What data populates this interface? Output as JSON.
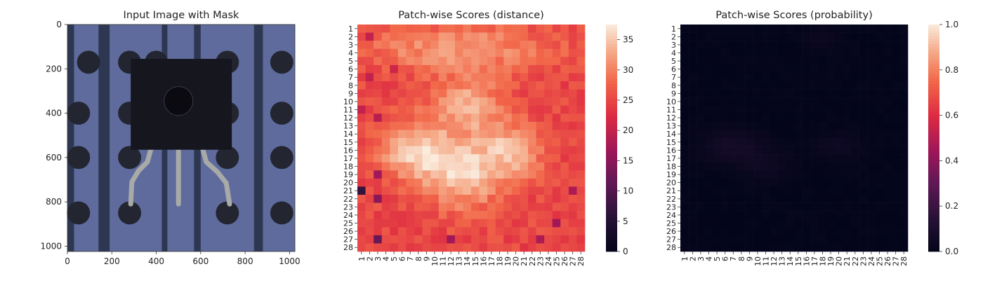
{
  "chart_data": [
    {
      "type": "image",
      "title": "Input Image with Mask",
      "xlim": [
        0,
        1024
      ],
      "ylim": [
        1024,
        0
      ],
      "xticks": [
        0,
        200,
        400,
        600,
        800,
        1000
      ],
      "yticks": [
        0,
        200,
        400,
        600,
        800,
        1000
      ],
      "background_color": "#5E6B9C",
      "stripe_color": "#2E3752",
      "hole_color": "#232631",
      "component_color": "#16161F",
      "lead_color": "#A8AAA8",
      "image_content": {
        "stripes_x": [
          [
            0,
            30
          ],
          [
            140,
            190
          ],
          [
            425,
            450
          ],
          [
            570,
            600
          ],
          [
            840,
            880
          ]
        ],
        "holes": [
          [
            95,
            170
          ],
          [
            280,
            170
          ],
          [
            400,
            170
          ],
          [
            720,
            170
          ],
          [
            965,
            170
          ],
          [
            50,
            400
          ],
          [
            280,
            400
          ],
          [
            720,
            400
          ],
          [
            965,
            400
          ],
          [
            50,
            600
          ],
          [
            280,
            600
          ],
          [
            720,
            600
          ],
          [
            965,
            600
          ],
          [
            50,
            850
          ],
          [
            280,
            850
          ],
          [
            720,
            850
          ],
          [
            965,
            850
          ]
        ],
        "component_body": [
          285,
          155,
          740,
          565
        ],
        "component_circle": [
          500,
          345,
          65
        ],
        "leads": [
          [
            [
              375,
              565
            ],
            [
              360,
              620
            ],
            [
              320,
              660
            ],
            [
              290,
              710
            ],
            [
              285,
              810
            ]
          ],
          [
            [
              500,
              565
            ],
            [
              500,
              810
            ]
          ],
          [
            [
              610,
              565
            ],
            [
              625,
              620
            ],
            [
              675,
              665
            ],
            [
              715,
              715
            ],
            [
              730,
              810
            ]
          ]
        ]
      }
    },
    {
      "type": "heatmap",
      "title": "Patch-wise Scores (distance)",
      "xticks": [
        "1",
        "2",
        "3",
        "4",
        "5",
        "6",
        "7",
        "8",
        "9",
        "10",
        "11",
        "12",
        "13",
        "14",
        "15",
        "16",
        "17",
        "18",
        "19",
        "20",
        "21",
        "22",
        "23",
        "24",
        "25",
        "26",
        "27",
        "28"
      ],
      "yticks": [
        "1",
        "2",
        "3",
        "4",
        "5",
        "6",
        "7",
        "8",
        "9",
        "10",
        "11",
        "12",
        "13",
        "14",
        "15",
        "16",
        "17",
        "18",
        "19",
        "20",
        "21",
        "22",
        "23",
        "24",
        "25",
        "26",
        "27",
        "28"
      ],
      "colorbar": {
        "min": 0,
        "max": 37.5,
        "ticks": [
          0,
          5,
          10,
          15,
          20,
          25,
          30,
          35
        ]
      },
      "colormap": "rocket",
      "grid_size": 28,
      "value_model": {
        "base": 25,
        "blobs": [
          {
            "cx": 13,
            "cy": 3.5,
            "amp": 7,
            "sx": 8,
            "sy": 2
          },
          {
            "cx": 14,
            "cy": 10.5,
            "amp": 8,
            "sx": 3.2,
            "sy": 2.5
          },
          {
            "cx": 7.5,
            "cy": 16,
            "amp": 10,
            "sx": 3,
            "sy": 2.5
          },
          {
            "cx": 13.5,
            "cy": 19,
            "amp": 10,
            "sx": 3.5,
            "sy": 3
          },
          {
            "cx": 19.5,
            "cy": 16,
            "amp": 8,
            "sx": 2.8,
            "sy": 2.5
          }
        ],
        "low_cells": [
          [
            1,
            21,
            7
          ],
          [
            3,
            27,
            12
          ],
          [
            3,
            22,
            15
          ],
          [
            3,
            19,
            17
          ],
          [
            3,
            12,
            19
          ],
          [
            12,
            27,
            17
          ],
          [
            23,
            27,
            18
          ],
          [
            27,
            21,
            18
          ],
          [
            25,
            25,
            17
          ],
          [
            2,
            2,
            20
          ],
          [
            1,
            11,
            20
          ],
          [
            5,
            6,
            21
          ],
          [
            2,
            7,
            20
          ]
        ]
      }
    },
    {
      "type": "heatmap",
      "title": "Patch-wise Scores (probability)",
      "xticks": [
        "1",
        "2",
        "3",
        "4",
        "5",
        "6",
        "7",
        "8",
        "9",
        "10",
        "11",
        "12",
        "13",
        "14",
        "15",
        "16",
        "17",
        "18",
        "19",
        "20",
        "21",
        "22",
        "23",
        "24",
        "25",
        "26",
        "27",
        "28"
      ],
      "yticks": [
        "1",
        "2",
        "3",
        "4",
        "5",
        "6",
        "7",
        "8",
        "9",
        "10",
        "11",
        "12",
        "13",
        "14",
        "15",
        "16",
        "17",
        "18",
        "19",
        "20",
        "21",
        "22",
        "23",
        "24",
        "25",
        "26",
        "27",
        "28"
      ],
      "colorbar": {
        "min": 0,
        "max": 1,
        "ticks": [
          "0.0",
          "0.2",
          "0.4",
          "0.6",
          "0.8",
          "1.0"
        ]
      },
      "colormap": "rocket",
      "grid_size": 28,
      "value_model": {
        "base": 0.0,
        "blobs": [
          {
            "cx": 7,
            "cy": 15.5,
            "amp": 0.07,
            "sx": 2.5,
            "sy": 1.5
          },
          {
            "cx": 11,
            "cy": 18,
            "amp": 0.04,
            "sx": 2,
            "sy": 1.5
          },
          {
            "cx": 20,
            "cy": 15.5,
            "amp": 0.04,
            "sx": 2,
            "sy": 1.2
          },
          {
            "cx": 18,
            "cy": 2.5,
            "amp": 0.03,
            "sx": 1.5,
            "sy": 1
          }
        ]
      }
    }
  ]
}
